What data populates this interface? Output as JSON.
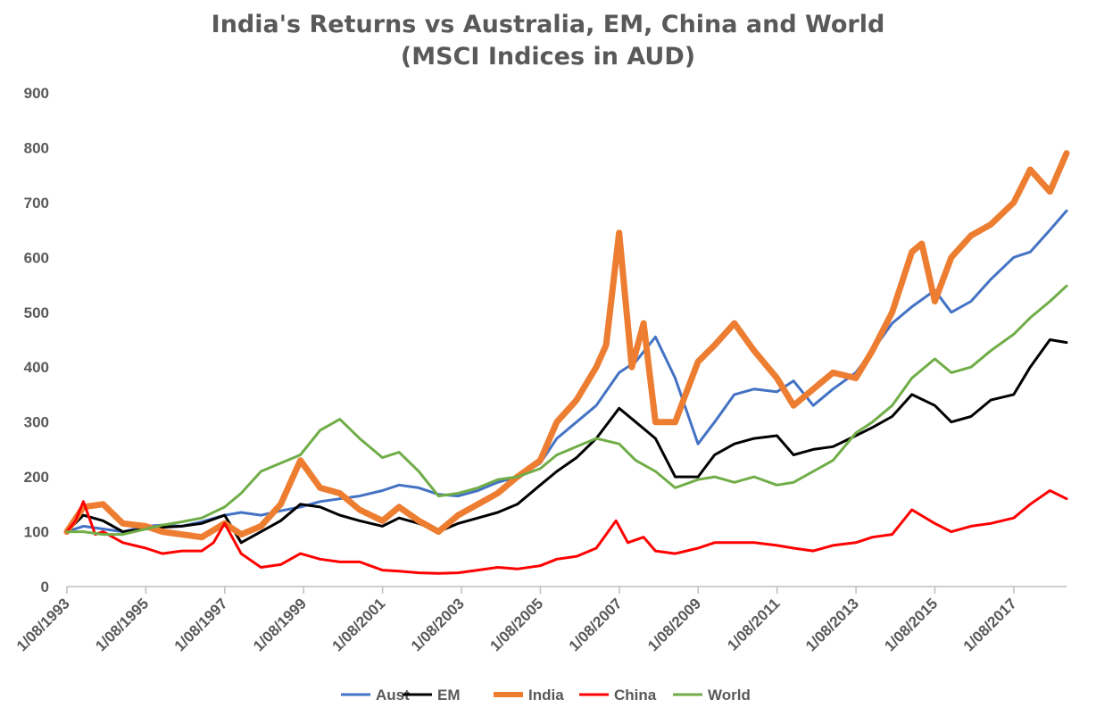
{
  "chart_data": {
    "type": "line",
    "title": "India's Returns vs Australia, EM, China and World",
    "subtitle": "(MSCI Indices in AUD)",
    "xlabel": "",
    "ylabel": "",
    "ylim": [
      0,
      900
    ],
    "yticks": [
      0,
      100,
      200,
      300,
      400,
      500,
      600,
      700,
      800,
      900
    ],
    "xlim": [
      1993.583,
      2018.92
    ],
    "xticks": [
      {
        "value": 1993.583,
        "label": "1/08/1993"
      },
      {
        "value": 1995.583,
        "label": "1/08/1995"
      },
      {
        "value": 1997.583,
        "label": "1/08/1997"
      },
      {
        "value": 1999.583,
        "label": "1/08/1999"
      },
      {
        "value": 2001.583,
        "label": "1/08/2001"
      },
      {
        "value": 2003.583,
        "label": "1/08/2003"
      },
      {
        "value": 2005.583,
        "label": "1/08/2005"
      },
      {
        "value": 2007.583,
        "label": "1/08/2007"
      },
      {
        "value": 2009.583,
        "label": "1/08/2009"
      },
      {
        "value": 2011.583,
        "label": "1/08/2011"
      },
      {
        "value": 2013.583,
        "label": "1/08/2013"
      },
      {
        "value": 2015.583,
        "label": "1/08/2015"
      },
      {
        "value": 2017.583,
        "label": "1/08/2017"
      }
    ],
    "grid": false,
    "legend_position": "bottom",
    "series": [
      {
        "name": "Aust",
        "color": "#4472C4",
        "width": 3,
        "x": [
          1993.58,
          1994.0,
          1994.5,
          1995.0,
          1995.58,
          1996.0,
          1996.5,
          1997.0,
          1997.58,
          1998.0,
          1998.5,
          1999.0,
          1999.5,
          2000.0,
          2000.5,
          2001.0,
          2001.58,
          2002.0,
          2002.5,
          2003.0,
          2003.5,
          2004.0,
          2004.5,
          2005.0,
          2005.58,
          2006.0,
          2006.5,
          2007.0,
          2007.58,
          2008.0,
          2008.5,
          2009.0,
          2009.58,
          2010.0,
          2010.5,
          2011.0,
          2011.58,
          2012.0,
          2012.5,
          2013.0,
          2013.58,
          2014.0,
          2014.5,
          2015.0,
          2015.58,
          2016.0,
          2016.5,
          2017.0,
          2017.58,
          2018.0,
          2018.5,
          2018.92
        ],
        "y": [
          100,
          110,
          105,
          100,
          110,
          112,
          110,
          118,
          130,
          135,
          130,
          138,
          145,
          155,
          160,
          165,
          175,
          185,
          180,
          168,
          165,
          175,
          190,
          200,
          225,
          270,
          300,
          330,
          390,
          410,
          455,
          380,
          260,
          300,
          350,
          360,
          355,
          375,
          330,
          360,
          390,
          430,
          480,
          510,
          540,
          500,
          520,
          560,
          600,
          610,
          650,
          685
        ]
      },
      {
        "name": "EM",
        "color": "#000000",
        "width": 3,
        "x": [
          1993.58,
          1994.0,
          1994.5,
          1995.0,
          1995.58,
          1996.0,
          1996.5,
          1997.0,
          1997.58,
          1998.0,
          1998.5,
          1999.0,
          1999.5,
          2000.0,
          2000.5,
          2001.0,
          2001.58,
          2002.0,
          2002.5,
          2003.0,
          2003.5,
          2004.0,
          2004.5,
          2005.0,
          2005.58,
          2006.0,
          2006.5,
          2007.0,
          2007.58,
          2008.0,
          2008.5,
          2009.0,
          2009.58,
          2010.0,
          2010.5,
          2011.0,
          2011.58,
          2012.0,
          2012.5,
          2013.0,
          2013.58,
          2014.0,
          2014.5,
          2015.0,
          2015.58,
          2016.0,
          2016.5,
          2017.0,
          2017.58,
          2018.0,
          2018.5,
          2018.92
        ],
        "y": [
          100,
          130,
          120,
          100,
          105,
          108,
          110,
          115,
          130,
          80,
          100,
          120,
          150,
          145,
          130,
          120,
          110,
          125,
          115,
          100,
          115,
          125,
          135,
          150,
          185,
          210,
          235,
          270,
          325,
          300,
          270,
          200,
          200,
          240,
          260,
          270,
          275,
          240,
          250,
          255,
          275,
          290,
          310,
          350,
          330,
          300,
          310,
          340,
          350,
          400,
          450,
          445
        ]
      },
      {
        "name": "India",
        "color": "#ED7D31",
        "width": 7,
        "x": [
          1993.58,
          1994.0,
          1994.5,
          1995.0,
          1995.58,
          1996.0,
          1996.5,
          1997.0,
          1997.58,
          1998.0,
          1998.5,
          1999.0,
          1999.5,
          2000.0,
          2000.5,
          2001.0,
          2001.58,
          2002.0,
          2002.5,
          2003.0,
          2003.5,
          2004.0,
          2004.5,
          2005.0,
          2005.58,
          2006.0,
          2006.5,
          2007.0,
          2007.25,
          2007.58,
          2007.9,
          2008.2,
          2008.5,
          2009.0,
          2009.58,
          2010.0,
          2010.5,
          2011.0,
          2011.58,
          2012.0,
          2012.5,
          2013.0,
          2013.58,
          2014.0,
          2014.5,
          2015.0,
          2015.25,
          2015.58,
          2016.0,
          2016.5,
          2017.0,
          2017.58,
          2018.0,
          2018.5,
          2018.92
        ],
        "y": [
          100,
          145,
          150,
          115,
          110,
          100,
          95,
          90,
          115,
          95,
          110,
          150,
          230,
          180,
          170,
          140,
          120,
          145,
          120,
          100,
          130,
          150,
          170,
          200,
          230,
          300,
          340,
          400,
          440,
          645,
          400,
          480,
          300,
          300,
          410,
          440,
          480,
          430,
          380,
          330,
          360,
          390,
          380,
          430,
          500,
          610,
          625,
          520,
          600,
          640,
          660,
          700,
          760,
          720,
          790
        ]
      },
      {
        "name": "China",
        "color": "#FF0000",
        "width": 3,
        "x": [
          1993.58,
          1993.8,
          1994.0,
          1994.3,
          1994.5,
          1995.0,
          1995.58,
          1996.0,
          1996.5,
          1997.0,
          1997.3,
          1997.58,
          1998.0,
          1998.5,
          1999.0,
          1999.5,
          2000.0,
          2000.5,
          2001.0,
          2001.58,
          2002.0,
          2002.5,
          2003.0,
          2003.5,
          2004.0,
          2004.5,
          2005.0,
          2005.58,
          2006.0,
          2006.5,
          2007.0,
          2007.5,
          2007.8,
          2008.2,
          2008.5,
          2009.0,
          2009.58,
          2010.0,
          2010.5,
          2011.0,
          2011.58,
          2012.0,
          2012.5,
          2013.0,
          2013.58,
          2014.0,
          2014.5,
          2015.0,
          2015.58,
          2016.0,
          2016.5,
          2017.0,
          2017.58,
          2018.0,
          2018.5,
          2018.92
        ],
        "y": [
          100,
          120,
          155,
          95,
          100,
          80,
          70,
          60,
          65,
          65,
          80,
          115,
          60,
          35,
          40,
          60,
          50,
          45,
          45,
          30,
          28,
          25,
          24,
          25,
          30,
          35,
          32,
          38,
          50,
          55,
          70,
          120,
          80,
          90,
          65,
          60,
          70,
          80,
          80,
          80,
          75,
          70,
          65,
          75,
          80,
          90,
          95,
          140,
          115,
          100,
          110,
          115,
          125,
          150,
          175,
          160
        ]
      },
      {
        "name": "World",
        "color": "#70AD47",
        "width": 3,
        "x": [
          1993.58,
          1994.0,
          1994.5,
          1995.0,
          1995.58,
          1996.0,
          1996.5,
          1997.0,
          1997.58,
          1998.0,
          1998.5,
          1999.0,
          1999.5,
          2000.0,
          2000.5,
          2001.0,
          2001.58,
          2002.0,
          2002.5,
          2003.0,
          2003.5,
          2004.0,
          2004.5,
          2005.0,
          2005.58,
          2006.0,
          2006.5,
          2007.0,
          2007.58,
          2008.0,
          2008.5,
          2009.0,
          2009.58,
          2010.0,
          2010.5,
          2011.0,
          2011.58,
          2012.0,
          2012.5,
          2013.0,
          2013.58,
          2014.0,
          2014.5,
          2015.0,
          2015.58,
          2016.0,
          2016.5,
          2017.0,
          2017.58,
          2018.0,
          2018.5,
          2018.92
        ],
        "y": [
          100,
          100,
          95,
          95,
          105,
          112,
          118,
          125,
          145,
          170,
          210,
          225,
          240,
          285,
          305,
          270,
          235,
          245,
          210,
          165,
          170,
          180,
          195,
          200,
          215,
          240,
          255,
          270,
          260,
          230,
          210,
          180,
          195,
          200,
          190,
          200,
          185,
          190,
          210,
          230,
          280,
          300,
          330,
          380,
          415,
          390,
          400,
          430,
          460,
          490,
          520,
          548
        ]
      }
    ]
  }
}
